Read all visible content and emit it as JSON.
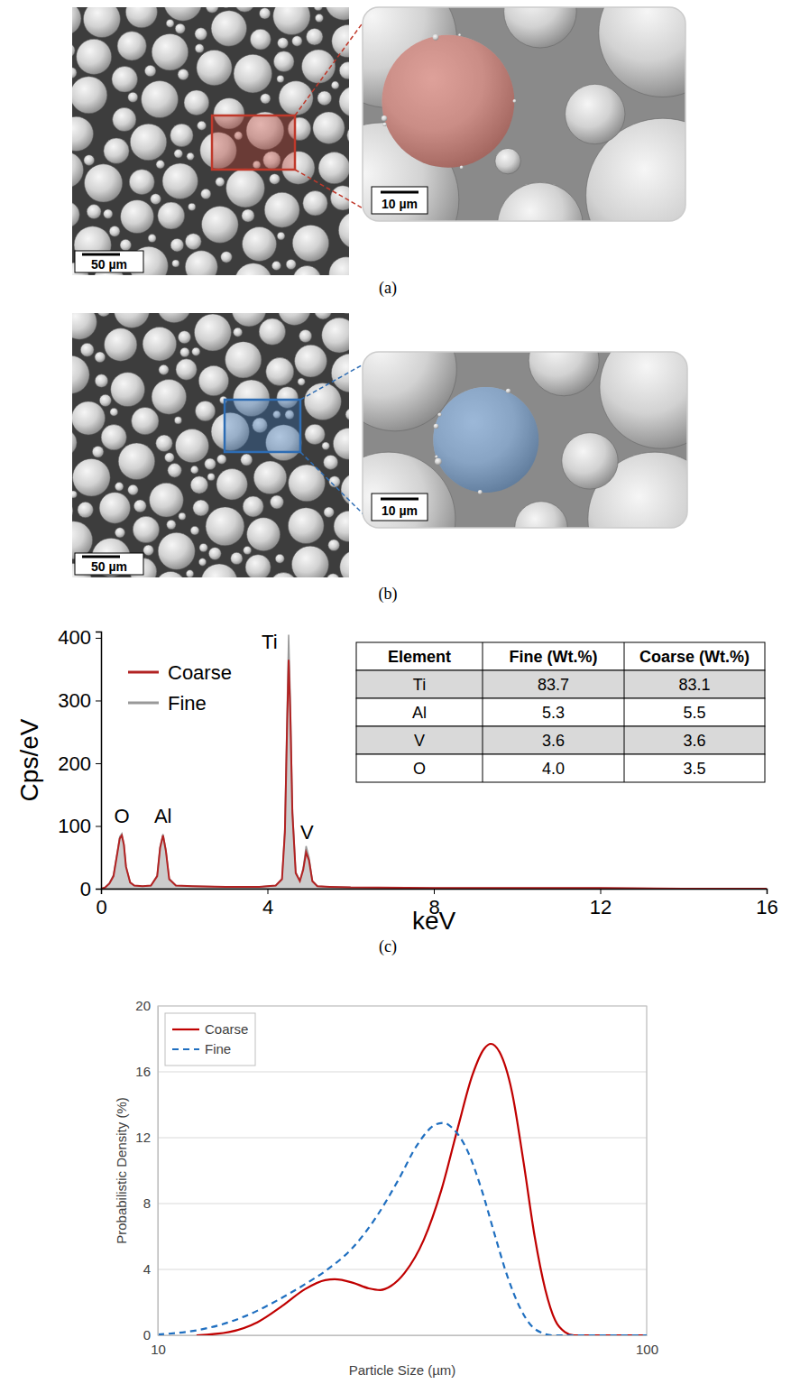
{
  "images": [
    {
      "label": "(a)",
      "scale_bar": "50 µm",
      "inset_scale_bar": "10 µm",
      "color": "#c0392b"
    },
    {
      "label": "(b)",
      "scale_bar": "50 µm",
      "inset_scale_bar": "10 µm",
      "color": "#2e6db4"
    }
  ],
  "chart_data": [
    {
      "type": "line",
      "label": "(c)",
      "x_label": "keV",
      "y_label": "Cps/eV",
      "xlim": [
        0,
        16
      ],
      "xticks": [
        0,
        4,
        8,
        12,
        16
      ],
      "ylim": [
        0,
        410
      ],
      "yticks": [
        0,
        100,
        200,
        300,
        400
      ],
      "legend": "upper left",
      "series": [
        {
          "name": "Coarse",
          "type": "line",
          "color": "#b22222",
          "x": [
            0,
            0.1,
            0.2,
            0.3,
            0.4,
            0.45,
            0.5,
            0.55,
            0.6,
            0.7,
            0.8,
            1.0,
            1.2,
            1.35,
            1.42,
            1.49,
            1.56,
            1.64,
            1.8,
            2.2,
            3.0,
            3.8,
            4.2,
            4.35,
            4.42,
            4.47,
            4.51,
            4.55,
            4.6,
            4.68,
            4.78,
            4.86,
            4.93,
            5.0,
            5.08,
            5.2,
            5.5,
            6,
            8,
            10,
            12,
            14,
            16
          ],
          "values": [
            0,
            2,
            8,
            20,
            60,
            80,
            85,
            70,
            35,
            10,
            5,
            4,
            5,
            20,
            65,
            85,
            60,
            15,
            5,
            4,
            3,
            3,
            5,
            15,
            90,
            250,
            365,
            280,
            120,
            25,
            12,
            30,
            58,
            45,
            12,
            4,
            3,
            2,
            1,
            1,
            1,
            0,
            0
          ]
        },
        {
          "name": "Fine",
          "type": "area",
          "color": "#999999",
          "x": [
            0,
            0.1,
            0.2,
            0.3,
            0.4,
            0.45,
            0.5,
            0.55,
            0.6,
            0.7,
            0.8,
            1.0,
            1.2,
            1.35,
            1.42,
            1.49,
            1.56,
            1.64,
            1.8,
            2.2,
            3.0,
            3.8,
            4.2,
            4.35,
            4.42,
            4.47,
            4.51,
            4.55,
            4.6,
            4.68,
            4.78,
            4.86,
            4.93,
            5.0,
            5.08,
            5.2,
            5.5,
            6,
            8,
            10,
            12,
            14,
            16
          ],
          "values": [
            0,
            2,
            9,
            22,
            62,
            83,
            88,
            72,
            36,
            10,
            5,
            4,
            5,
            21,
            67,
            87,
            62,
            16,
            5,
            4,
            3,
            3,
            5,
            16,
            98,
            275,
            405,
            305,
            130,
            27,
            13,
            33,
            68,
            50,
            13,
            4,
            3,
            2,
            1,
            1,
            1,
            0,
            0
          ]
        }
      ],
      "annotations": [
        {
          "text": "O",
          "x": 0.5,
          "y": 100
        },
        {
          "text": "Al",
          "x": 1.49,
          "y": 100
        },
        {
          "text": "Ti",
          "x": 4.05,
          "y": 378
        },
        {
          "text": "V",
          "x": 4.95,
          "y": 75
        }
      ],
      "table": {
        "header": [
          "Element",
          "Fine (Wt.%)",
          "Coarse (Wt.%)"
        ],
        "rows": [
          [
            "Ti",
            "83.7",
            "83.1"
          ],
          [
            "Al",
            "5.3",
            "5.5"
          ],
          [
            "V",
            "3.6",
            "3.6"
          ],
          [
            "O",
            "4.0",
            "3.5"
          ]
        ]
      }
    },
    {
      "type": "line",
      "x_label": "Particle Size (µm)",
      "y_label": "Probabilistic Density (%)",
      "log": "x",
      "xlim": [
        10,
        100
      ],
      "xticks": [
        10,
        100
      ],
      "ylim": [
        0,
        20
      ],
      "yticks": [
        0,
        4,
        8,
        12,
        16,
        20
      ],
      "grid": true,
      "legend": "upper left",
      "series": [
        {
          "name": "Coarse",
          "color": "#c00000",
          "line_style": "solid",
          "x": [
            12,
            14,
            16,
            18,
            20,
            22,
            23,
            25,
            27,
            28.5,
            30,
            32,
            35,
            38,
            41,
            44,
            46.5,
            48,
            50,
            53,
            56,
            59,
            62,
            65,
            68,
            71,
            100
          ],
          "values": [
            0,
            0.2,
            0.8,
            1.8,
            2.8,
            3.35,
            3.4,
            3.2,
            2.85,
            2.75,
            3.0,
            3.8,
            5.8,
            8.8,
            12.5,
            15.8,
            17.4,
            17.7,
            17.2,
            14.8,
            10.5,
            6.0,
            2.8,
            0.9,
            0.2,
            0,
            0
          ]
        },
        {
          "name": "Fine",
          "color": "#1f6fc0",
          "line_style": "dashed",
          "x": [
            10,
            12,
            14,
            16,
            18,
            20,
            22,
            25,
            28,
            31,
            34,
            37,
            38.5,
            40,
            43,
            46,
            49,
            52,
            55,
            58,
            61,
            64,
            100
          ],
          "values": [
            0.05,
            0.3,
            0.8,
            1.5,
            2.3,
            3.1,
            3.9,
            5.3,
            7.2,
            9.4,
            11.6,
            12.8,
            12.9,
            12.6,
            11.2,
            8.8,
            6.0,
            3.5,
            1.7,
            0.6,
            0.15,
            0,
            0
          ]
        }
      ]
    }
  ]
}
